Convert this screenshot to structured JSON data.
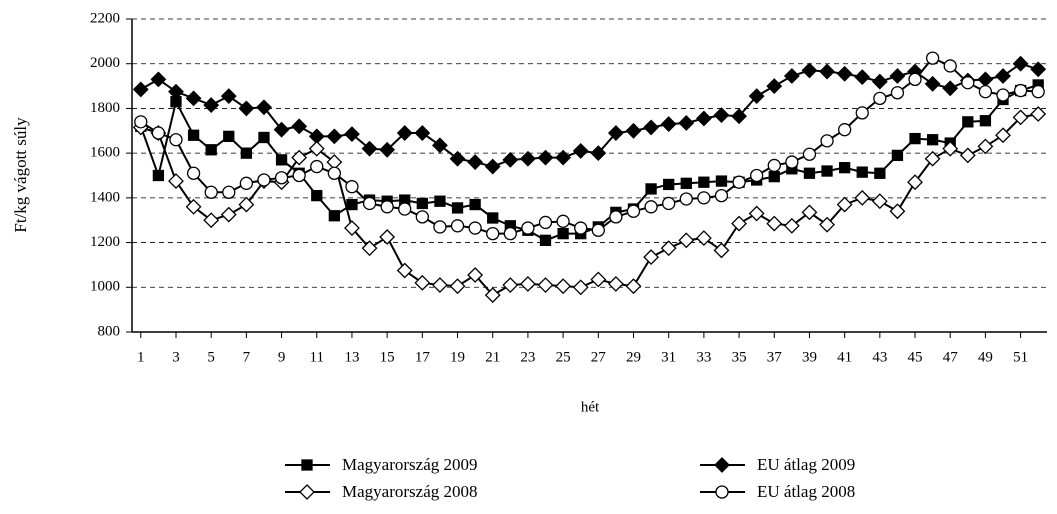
{
  "chart_data": {
    "type": "line",
    "ylabel": "Ft/kg vágott súly",
    "xlabel": "hét",
    "x": [
      1,
      2,
      3,
      4,
      5,
      6,
      7,
      8,
      9,
      10,
      11,
      12,
      13,
      14,
      15,
      16,
      17,
      18,
      19,
      20,
      21,
      22,
      23,
      24,
      25,
      26,
      27,
      28,
      29,
      30,
      31,
      32,
      33,
      34,
      35,
      36,
      37,
      38,
      39,
      40,
      41,
      42,
      43,
      44,
      45,
      46,
      47,
      48,
      49,
      50,
      51,
      52
    ],
    "xlim": [
      0.5,
      52.5
    ],
    "xticks": [
      1,
      3,
      5,
      7,
      9,
      11,
      13,
      15,
      17,
      19,
      21,
      23,
      25,
      27,
      29,
      31,
      33,
      35,
      37,
      39,
      41,
      43,
      45,
      47,
      49,
      51
    ],
    "ylim": [
      800,
      2200
    ],
    "yticks": [
      800,
      1000,
      1200,
      1400,
      1600,
      1800,
      2000,
      2200
    ],
    "grid": true,
    "legend": "bottom",
    "series": [
      {
        "name": "Magyarország 2009",
        "color": "#000000",
        "marker": "square",
        "marker_fill": "#000000",
        "values": [
          1720,
          1500,
          1830,
          1680,
          1615,
          1675,
          1600,
          1670,
          1570,
          1510,
          1410,
          1320,
          1370,
          1390,
          1385,
          1390,
          1375,
          1385,
          1355,
          1370,
          1310,
          1275,
          1255,
          1210,
          1240,
          1240,
          1270,
          1335,
          1350,
          1440,
          1460,
          1465,
          1470,
          1475,
          1470,
          1480,
          1495,
          1530,
          1510,
          1520,
          1535,
          1515,
          1510,
          1590,
          1665,
          1660,
          1645,
          1740,
          1745,
          1840,
          1880,
          1905
        ]
      },
      {
        "name": "EU átlag 2009",
        "color": "#000000",
        "marker": "diamond",
        "marker_fill": "#000000",
        "values": [
          1885,
          1930,
          1875,
          1845,
          1815,
          1855,
          1800,
          1805,
          1705,
          1720,
          1675,
          1675,
          1685,
          1620,
          1615,
          1690,
          1690,
          1635,
          1575,
          1560,
          1540,
          1570,
          1575,
          1580,
          1580,
          1610,
          1600,
          1690,
          1700,
          1715,
          1730,
          1735,
          1755,
          1770,
          1765,
          1855,
          1900,
          1945,
          1970,
          1965,
          1955,
          1940,
          1920,
          1945,
          1965,
          1910,
          1890,
          1925,
          1930,
          1945,
          2000,
          1975
        ]
      },
      {
        "name": "Magyarország 2008",
        "color": "#000000",
        "marker": "diamond",
        "marker_fill": "#ffffff",
        "values": [
          1715,
          1690,
          1475,
          1360,
          1300,
          1325,
          1370,
          1475,
          1470,
          1580,
          1620,
          1560,
          1265,
          1175,
          1225,
          1075,
          1020,
          1010,
          1005,
          1055,
          965,
          1010,
          1015,
          1010,
          1005,
          1000,
          1035,
          1015,
          1005,
          1135,
          1175,
          1210,
          1220,
          1165,
          1285,
          1330,
          1285,
          1275,
          1335,
          1280,
          1370,
          1400,
          1385,
          1340,
          1470,
          1575,
          1620,
          1590,
          1630,
          1680,
          1760,
          1775
        ]
      },
      {
        "name": "EU átlag 2008",
        "color": "#000000",
        "marker": "circle",
        "marker_fill": "#ffffff",
        "values": [
          1740,
          1690,
          1660,
          1510,
          1425,
          1425,
          1465,
          1480,
          1490,
          1500,
          1540,
          1510,
          1450,
          1375,
          1360,
          1350,
          1315,
          1270,
          1275,
          1265,
          1240,
          1240,
          1265,
          1290,
          1295,
          1265,
          1255,
          1315,
          1340,
          1360,
          1375,
          1395,
          1400,
          1410,
          1470,
          1500,
          1545,
          1560,
          1595,
          1655,
          1705,
          1780,
          1845,
          1870,
          1930,
          2025,
          1990,
          1915,
          1875,
          1860,
          1880,
          1875
        ]
      }
    ]
  }
}
